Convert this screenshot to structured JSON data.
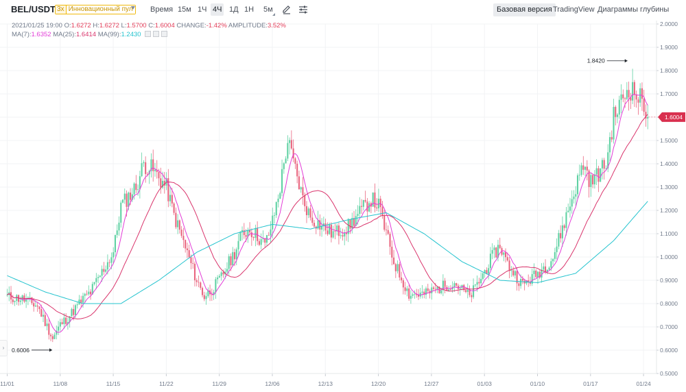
{
  "toolbar": {
    "pair": "BEL/USDT",
    "leverage": "3x",
    "zone": "Инновационный пул",
    "time_label": "Время",
    "intervals": [
      "15м",
      "1Ч",
      "4Ч",
      "1Д",
      "1Н",
      "5м"
    ],
    "active_interval": "4Ч",
    "views": [
      "Базовая версия",
      "TradingView",
      "Диаграммы глубины"
    ],
    "active_view": "Базовая версия"
  },
  "ohlc": {
    "date": "2021/01/25 19:00",
    "open_label": "O:",
    "open": "1.6272",
    "high_label": "H:",
    "high": "1.6272",
    "low_label": "L:",
    "low": "1.5700",
    "close_label": "C:",
    "close": "1.6004",
    "change_label": "CHANGE:",
    "change": "-1.42%",
    "amplitude_label": "AMPLITUDE:",
    "amplitude": "3.52%"
  },
  "ma": {
    "ma7_label": "MA(7):",
    "ma7": "1.6352",
    "ma25_label": "MA(25):",
    "ma25": "1.6414",
    "ma99_label": "MA(99):",
    "ma99": "1.2430"
  },
  "colors": {
    "up": "#5fd1a3",
    "down": "#e9657f",
    "ma7": "#e23bd7",
    "ma25": "#d9336b",
    "ma99": "#23c3ce",
    "price_tag": "#d9304f"
  },
  "chart_data": {
    "type": "candlestick",
    "pair": "BEL/USDT",
    "interval": "4Ч",
    "ylim": [
      0.5,
      2.0
    ],
    "y_ticks": [
      "0.5000",
      "0.6000",
      "0.7000",
      "0.8000",
      "0.9000",
      "1.0000",
      "1.1000",
      "1.2000",
      "1.3000",
      "1.4000",
      "1.5000",
      "1.6000",
      "1.7000",
      "1.8000",
      "1.9000",
      "2.0000"
    ],
    "x_ticks": [
      "11/01",
      "11/08",
      "11/15",
      "11/22",
      "11/29",
      "12/06",
      "12/13",
      "12/20",
      "12/27",
      "01/03",
      "01/10",
      "01/17",
      "01/24"
    ],
    "price_path": {
      "x": [
        0,
        2,
        4,
        5,
        6,
        7,
        8,
        10,
        11,
        14,
        15,
        17,
        18,
        19,
        21,
        22,
        25,
        26,
        27,
        28,
        30,
        31,
        32,
        33,
        34,
        35,
        36,
        37,
        39,
        40,
        42,
        43,
        45,
        48,
        49,
        50,
        51,
        53,
        55,
        58,
        59,
        61,
        62,
        64,
        65,
        66,
        68,
        70,
        72,
        75,
        76,
        77,
        79,
        80,
        82,
        84,
        84.3,
        84.6
      ],
      "close": [
        0.83,
        0.82,
        0.79,
        0.72,
        0.65,
        0.71,
        0.74,
        0.82,
        0.85,
        1.02,
        1.22,
        1.3,
        1.4,
        1.38,
        1.3,
        1.18,
        0.9,
        0.83,
        0.86,
        0.9,
        1.02,
        1.1,
        1.12,
        1.09,
        1.05,
        1.15,
        1.3,
        1.5,
        1.25,
        1.17,
        1.12,
        1.1,
        1.13,
        1.25,
        1.22,
        1.1,
        0.98,
        0.84,
        0.84,
        0.88,
        0.89,
        0.83,
        0.88,
        1.0,
        1.05,
        0.97,
        0.88,
        0.93,
        1.0,
        1.3,
        1.4,
        1.32,
        1.4,
        1.6,
        1.73,
        1.66,
        1.6272,
        1.6004
      ]
    },
    "ma7_last": 1.6352,
    "ma25_last": 1.6414,
    "ma99_last": 1.243,
    "ma99_path": {
      "x": [
        0,
        5,
        10,
        15,
        20,
        25,
        30,
        35,
        40,
        45,
        50,
        55,
        60,
        65,
        70,
        75,
        80,
        84.6
      ],
      "y": [
        0.92,
        0.85,
        0.8,
        0.8,
        0.9,
        1.02,
        1.1,
        1.14,
        1.12,
        1.16,
        1.19,
        1.1,
        0.98,
        0.9,
        0.89,
        0.93,
        1.07,
        1.243
      ]
    },
    "annotations": [
      {
        "label": "1.8420",
        "x": 82.1,
        "y": 1.842
      },
      {
        "label": "0.6006",
        "x": 6.2,
        "y": 0.6006
      }
    ],
    "last_price": "1.6004"
  }
}
